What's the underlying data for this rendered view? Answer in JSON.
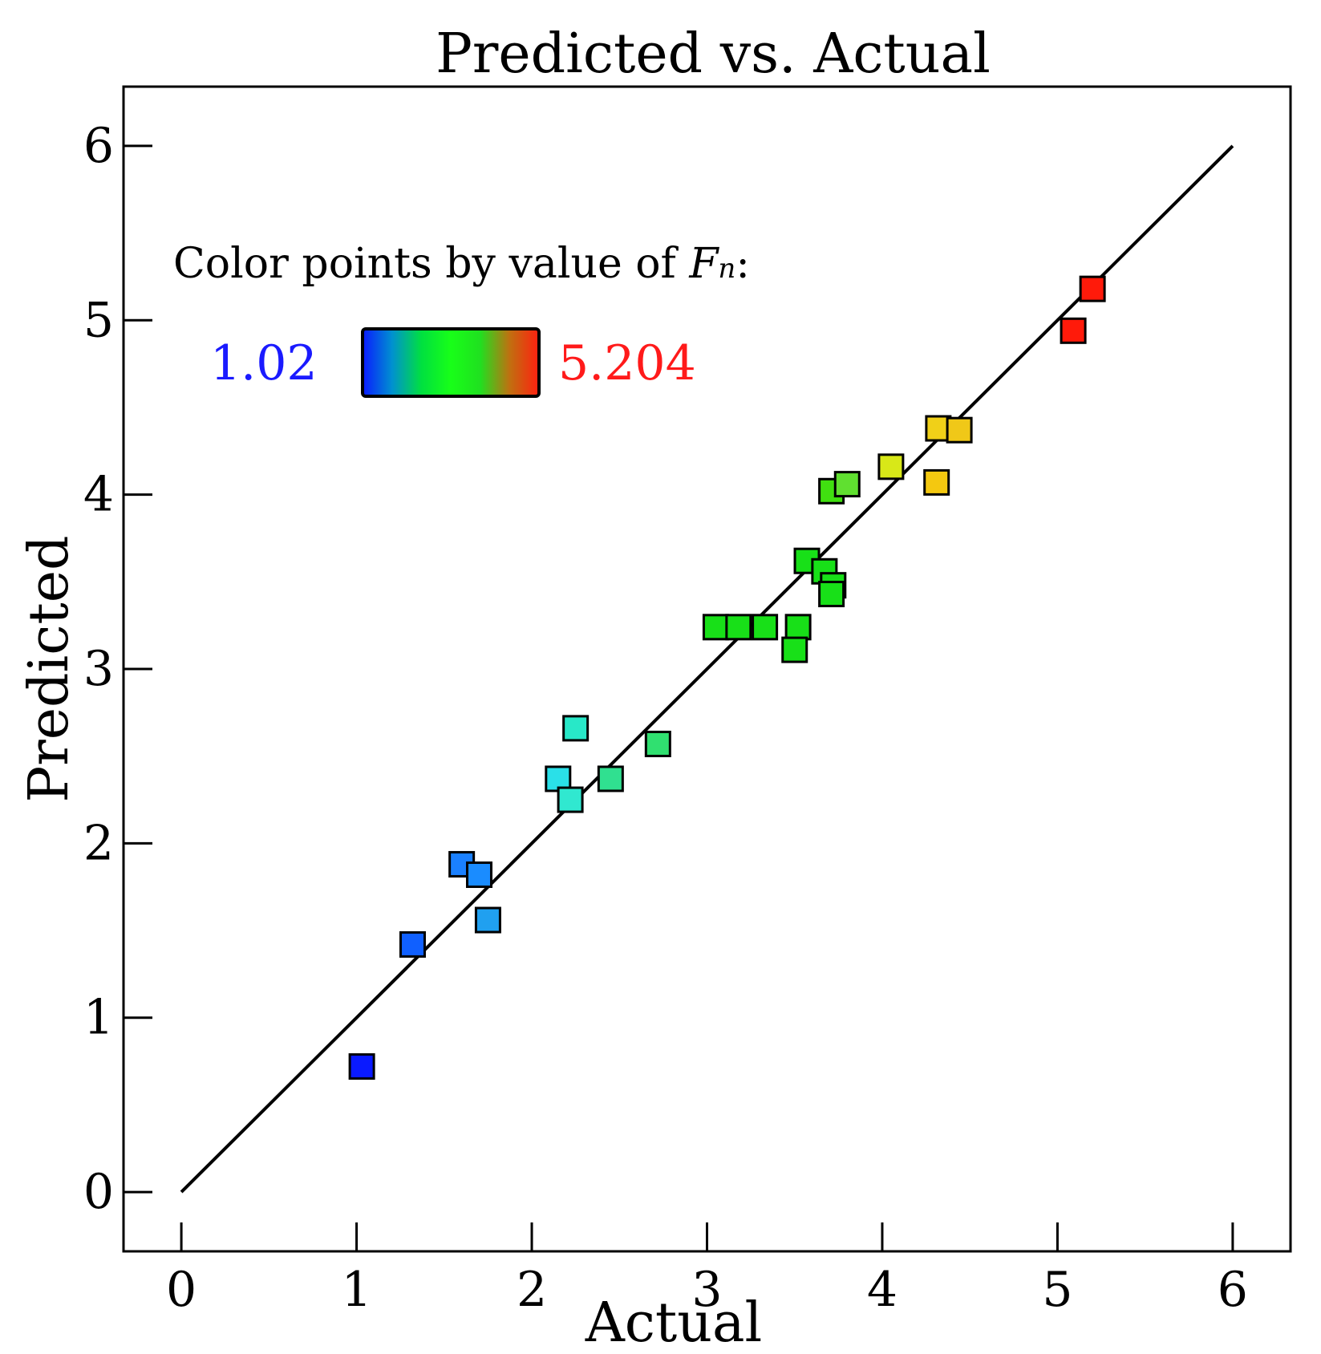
{
  "chart_data": {
    "type": "scatter",
    "title": "Predicted vs. Actual",
    "xlabel": "Actual",
    "ylabel": "Predicted",
    "xlim": [
      -0.33,
      6.33
    ],
    "ylim": [
      -0.34,
      6.34
    ],
    "xticks": [
      "0",
      "1",
      "2",
      "3",
      "4",
      "5",
      "6"
    ],
    "yticks": [
      "0",
      "1",
      "2",
      "3",
      "4",
      "5",
      "6"
    ],
    "reference_line": {
      "from": [
        0,
        0
      ],
      "to": [
        6,
        6
      ]
    },
    "color_legend": {
      "caption_prefix": "Color points by value of ",
      "caption_var": "F",
      "caption_sub": "n",
      "caption_suffix": ":",
      "min_label": "1.02",
      "max_label": "5.204",
      "min_color": "#1a1aff",
      "max_color": "#ff1a1a",
      "gradient": [
        "#0a1aff",
        "#0090d0",
        "#00e040",
        "#18ff18",
        "#20e020",
        "#c07010",
        "#ff2010"
      ]
    },
    "marker": "square",
    "points": [
      {
        "x": 1.03,
        "y": 0.72,
        "color": "#0a1aff"
      },
      {
        "x": 1.32,
        "y": 1.42,
        "color": "#1060ff"
      },
      {
        "x": 1.6,
        "y": 1.88,
        "color": "#1a80ff"
      },
      {
        "x": 1.7,
        "y": 1.82,
        "color": "#1a8cff"
      },
      {
        "x": 1.75,
        "y": 1.56,
        "color": "#20a0f0"
      },
      {
        "x": 2.15,
        "y": 2.37,
        "color": "#2ae0e8"
      },
      {
        "x": 2.22,
        "y": 2.25,
        "color": "#30e8d0"
      },
      {
        "x": 2.25,
        "y": 2.66,
        "color": "#28e8c8"
      },
      {
        "x": 2.45,
        "y": 2.37,
        "color": "#30e090"
      },
      {
        "x": 2.72,
        "y": 2.57,
        "color": "#30e070"
      },
      {
        "x": 3.05,
        "y": 3.24,
        "color": "#18e018"
      },
      {
        "x": 3.18,
        "y": 3.24,
        "color": "#18e018"
      },
      {
        "x": 3.33,
        "y": 3.24,
        "color": "#18e018"
      },
      {
        "x": 3.52,
        "y": 3.24,
        "color": "#18e018"
      },
      {
        "x": 3.5,
        "y": 3.11,
        "color": "#18e018"
      },
      {
        "x": 3.57,
        "y": 3.62,
        "color": "#18e018"
      },
      {
        "x": 3.67,
        "y": 3.56,
        "color": "#18e018"
      },
      {
        "x": 3.72,
        "y": 3.48,
        "color": "#18e018"
      },
      {
        "x": 3.71,
        "y": 3.43,
        "color": "#18e018"
      },
      {
        "x": 3.71,
        "y": 4.02,
        "color": "#40e010"
      },
      {
        "x": 3.8,
        "y": 4.06,
        "color": "#60e030"
      },
      {
        "x": 4.05,
        "y": 4.16,
        "color": "#d8e818"
      },
      {
        "x": 4.32,
        "y": 4.38,
        "color": "#f0d018"
      },
      {
        "x": 4.44,
        "y": 4.37,
        "color": "#f0c818"
      },
      {
        "x": 4.31,
        "y": 4.07,
        "color": "#f4c810"
      },
      {
        "x": 5.09,
        "y": 4.94,
        "color": "#ff1a0a"
      },
      {
        "x": 5.2,
        "y": 5.18,
        "color": "#ff1a0a"
      }
    ]
  }
}
